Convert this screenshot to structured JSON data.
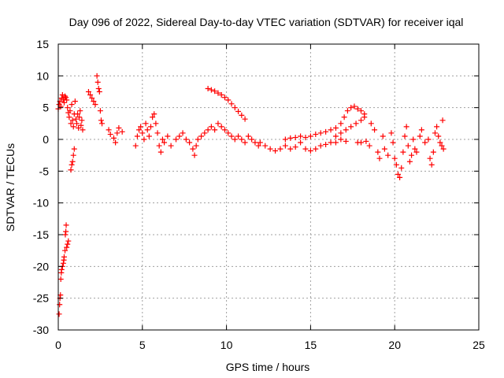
{
  "chart_data": {
    "type": "scatter",
    "title": "Day 096 of 2022, Sidereal Day-to-day VTEC variation (SDTVAR) for receiver iqal",
    "xlabel": "GPS time / hours",
    "ylabel": "SDTVAR / TECUs",
    "xlim": [
      0,
      25
    ],
    "ylim": [
      -30,
      15
    ],
    "xticks": [
      "0",
      "5",
      "10",
      "15",
      "20",
      "25"
    ],
    "yticks": [
      "15",
      "10",
      "5",
      "0",
      "-5",
      "-10",
      "-15",
      "-20",
      "-25",
      "-30"
    ],
    "grid": true,
    "marker": "plus",
    "color": "#ff0000",
    "series": [
      {
        "name": "SDTVAR",
        "points": [
          [
            0.0,
            4.8
          ],
          [
            0.05,
            5.5
          ],
          [
            0.1,
            6.0
          ],
          [
            0.15,
            5.2
          ],
          [
            0.2,
            6.5
          ],
          [
            0.25,
            7.0
          ],
          [
            0.3,
            6.3
          ],
          [
            0.35,
            5.8
          ],
          [
            0.4,
            6.8
          ],
          [
            0.45,
            6.6
          ],
          [
            0.05,
            -27.5
          ],
          [
            0.08,
            -26.0
          ],
          [
            0.1,
            -25.0
          ],
          [
            0.13,
            -24.5
          ],
          [
            0.15,
            -22.0
          ],
          [
            0.18,
            -21.0
          ],
          [
            0.2,
            -20.5
          ],
          [
            0.25,
            -20.0
          ],
          [
            0.3,
            -19.5
          ],
          [
            0.33,
            -19.0
          ],
          [
            0.35,
            -18.5
          ],
          [
            0.4,
            -17.5
          ],
          [
            0.42,
            -15.0
          ],
          [
            0.45,
            -14.5
          ],
          [
            0.47,
            -13.5
          ],
          [
            0.5,
            -17.0
          ],
          [
            0.55,
            -16.5
          ],
          [
            0.6,
            -16.0
          ],
          [
            0.5,
            6.2
          ],
          [
            0.55,
            5.0
          ],
          [
            0.6,
            4.2
          ],
          [
            0.65,
            3.5
          ],
          [
            0.7,
            4.5
          ],
          [
            0.75,
            2.5
          ],
          [
            0.8,
            5.5
          ],
          [
            0.85,
            3.0
          ],
          [
            0.9,
            2.0
          ],
          [
            0.95,
            4.0
          ],
          [
            1.0,
            6.0
          ],
          [
            1.05,
            3.2
          ],
          [
            1.1,
            2.5
          ],
          [
            1.15,
            4.0
          ],
          [
            1.2,
            1.8
          ],
          [
            1.25,
            3.5
          ],
          [
            1.3,
            4.5
          ],
          [
            1.35,
            2.2
          ],
          [
            1.4,
            3.0
          ],
          [
            1.45,
            1.5
          ],
          [
            0.75,
            -4.8
          ],
          [
            0.8,
            -4.0
          ],
          [
            0.85,
            -3.5
          ],
          [
            0.9,
            -2.5
          ],
          [
            0.95,
            -1.5
          ],
          [
            1.8,
            7.5
          ],
          [
            1.9,
            7.0
          ],
          [
            2.0,
            6.5
          ],
          [
            2.1,
            6.0
          ],
          [
            2.2,
            5.5
          ],
          [
            2.3,
            10.0
          ],
          [
            2.35,
            9.0
          ],
          [
            2.4,
            8.0
          ],
          [
            2.45,
            7.5
          ],
          [
            2.5,
            4.5
          ],
          [
            2.55,
            3.0
          ],
          [
            2.6,
            2.5
          ],
          [
            3.0,
            1.5
          ],
          [
            3.1,
            0.8
          ],
          [
            3.3,
            0.2
          ],
          [
            3.4,
            -0.5
          ],
          [
            3.5,
            1.0
          ],
          [
            3.6,
            1.8
          ],
          [
            3.8,
            1.2
          ],
          [
            4.6,
            -1.0
          ],
          [
            4.7,
            0.5
          ],
          [
            4.8,
            1.5
          ],
          [
            4.9,
            2.0
          ],
          [
            5.0,
            1.0
          ],
          [
            5.1,
            0.0
          ],
          [
            5.2,
            2.5
          ],
          [
            5.3,
            1.5
          ],
          [
            5.4,
            0.5
          ],
          [
            5.5,
            2.0
          ],
          [
            5.6,
            3.5
          ],
          [
            5.7,
            4.0
          ],
          [
            5.8,
            2.5
          ],
          [
            5.9,
            1.0
          ],
          [
            6.0,
            -1.0
          ],
          [
            6.1,
            -2.0
          ],
          [
            6.2,
            0.0
          ],
          [
            6.3,
            -0.5
          ],
          [
            6.5,
            0.5
          ],
          [
            6.7,
            -1.0
          ],
          [
            7.0,
            0.0
          ],
          [
            7.2,
            0.5
          ],
          [
            7.4,
            1.0
          ],
          [
            7.6,
            0.0
          ],
          [
            7.8,
            -0.5
          ],
          [
            8.0,
            -1.5
          ],
          [
            8.1,
            -2.5
          ],
          [
            8.2,
            -1.0
          ],
          [
            8.3,
            0.0
          ],
          [
            8.5,
            0.5
          ],
          [
            8.7,
            1.0
          ],
          [
            8.9,
            1.5
          ],
          [
            9.1,
            2.0
          ],
          [
            9.3,
            1.5
          ],
          [
            9.5,
            2.5
          ],
          [
            9.7,
            2.0
          ],
          [
            9.9,
            1.5
          ],
          [
            10.1,
            1.0
          ],
          [
            10.3,
            0.5
          ],
          [
            10.5,
            0.0
          ],
          [
            10.7,
            0.5
          ],
          [
            10.9,
            0.0
          ],
          [
            11.1,
            -0.5
          ],
          [
            11.3,
            0.5
          ],
          [
            11.5,
            0.0
          ],
          [
            11.7,
            -0.5
          ],
          [
            11.9,
            -1.0
          ],
          [
            8.9,
            8.0
          ],
          [
            9.1,
            7.8
          ],
          [
            9.3,
            7.6
          ],
          [
            9.5,
            7.3
          ],
          [
            9.7,
            7.0
          ],
          [
            9.9,
            6.6
          ],
          [
            10.1,
            6.2
          ],
          [
            10.3,
            5.6
          ],
          [
            10.5,
            5.0
          ],
          [
            10.7,
            4.4
          ],
          [
            10.9,
            3.8
          ],
          [
            11.1,
            3.2
          ],
          [
            12.0,
            -0.5
          ],
          [
            12.3,
            -1.0
          ],
          [
            12.6,
            -1.5
          ],
          [
            12.9,
            -1.8
          ],
          [
            13.2,
            -1.5
          ],
          [
            13.5,
            -1.0
          ],
          [
            13.8,
            -1.5
          ],
          [
            14.1,
            -1.2
          ],
          [
            14.4,
            -0.5
          ],
          [
            14.7,
            -1.5
          ],
          [
            15.0,
            -1.8
          ],
          [
            15.3,
            -1.5
          ],
          [
            15.6,
            -1.0
          ],
          [
            15.9,
            -0.8
          ],
          [
            16.2,
            -0.5
          ],
          [
            16.5,
            -0.5
          ],
          [
            16.8,
            0.0
          ],
          [
            17.1,
            -0.3
          ],
          [
            13.5,
            0.0
          ],
          [
            13.8,
            0.2
          ],
          [
            14.1,
            0.3
          ],
          [
            14.4,
            0.5
          ],
          [
            14.7,
            0.3
          ],
          [
            15.0,
            0.5
          ],
          [
            15.3,
            0.8
          ],
          [
            15.6,
            1.0
          ],
          [
            15.9,
            1.2
          ],
          [
            16.2,
            1.5
          ],
          [
            16.5,
            1.8
          ],
          [
            16.8,
            2.5
          ],
          [
            17.0,
            3.5
          ],
          [
            17.2,
            4.5
          ],
          [
            17.4,
            5.0
          ],
          [
            17.6,
            5.2
          ],
          [
            17.8,
            4.8
          ],
          [
            18.0,
            4.5
          ],
          [
            18.2,
            4.0
          ],
          [
            16.5,
            0.5
          ],
          [
            16.8,
            1.0
          ],
          [
            17.1,
            1.5
          ],
          [
            17.4,
            2.0
          ],
          [
            17.7,
            2.5
          ],
          [
            18.0,
            3.0
          ],
          [
            18.2,
            3.5
          ],
          [
            17.8,
            -0.5
          ],
          [
            18.0,
            -0.5
          ],
          [
            18.3,
            -0.3
          ],
          [
            18.5,
            -1.0
          ],
          [
            18.6,
            2.5
          ],
          [
            18.8,
            1.5
          ],
          [
            19.0,
            -2.0
          ],
          [
            19.1,
            -3.0
          ],
          [
            19.3,
            0.5
          ],
          [
            19.4,
            -1.5
          ],
          [
            19.6,
            -2.5
          ],
          [
            19.8,
            1.0
          ],
          [
            19.9,
            -0.5
          ],
          [
            20.0,
            -3.0
          ],
          [
            20.1,
            -4.0
          ],
          [
            20.2,
            -5.5
          ],
          [
            20.3,
            -6.0
          ],
          [
            20.4,
            -4.5
          ],
          [
            20.5,
            -2.0
          ],
          [
            20.6,
            0.5
          ],
          [
            20.7,
            2.0
          ],
          [
            20.8,
            -1.0
          ],
          [
            20.9,
            -3.5
          ],
          [
            21.0,
            -2.5
          ],
          [
            21.1,
            0.0
          ],
          [
            21.2,
            -1.5
          ],
          [
            21.3,
            -2.0
          ],
          [
            21.5,
            0.5
          ],
          [
            21.6,
            1.5
          ],
          [
            21.8,
            -0.5
          ],
          [
            22.0,
            0.0
          ],
          [
            22.1,
            -3.0
          ],
          [
            22.2,
            -4.0
          ],
          [
            22.3,
            -2.0
          ],
          [
            22.4,
            1.0
          ],
          [
            22.5,
            2.0
          ],
          [
            22.6,
            0.5
          ],
          [
            22.7,
            -0.5
          ],
          [
            22.8,
            -1.0
          ],
          [
            22.85,
            3.0
          ],
          [
            22.9,
            -1.5
          ]
        ]
      }
    ]
  }
}
